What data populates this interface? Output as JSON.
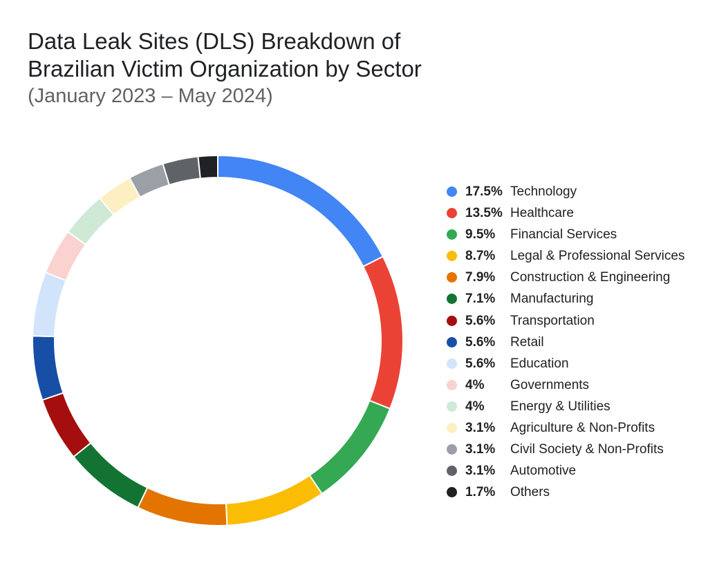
{
  "title": {
    "line1": "Data Leak Sites (DLS) Breakdown of",
    "line2": "Brazilian Victim Organization by Sector",
    "subtitle": "(January 2023 – May 2024)"
  },
  "chart_data": {
    "type": "pie",
    "variant": "donut",
    "legend_position": "right",
    "slices": [
      {
        "label": "Technology",
        "value": 17.5,
        "display": "17.5%",
        "color": "#4285F4"
      },
      {
        "label": "Healthcare",
        "value": 13.5,
        "display": "13.5%",
        "color": "#EA4335"
      },
      {
        "label": "Financial Services",
        "value": 9.5,
        "display": "9.5%",
        "color": "#34A853"
      },
      {
        "label": "Legal & Professional Services",
        "value": 8.7,
        "display": "8.7%",
        "color": "#FBBC04"
      },
      {
        "label": "Construction & Engineering",
        "value": 7.9,
        "display": "7.9%",
        "color": "#E37400"
      },
      {
        "label": "Manufacturing",
        "value": 7.1,
        "display": "7.1%",
        "color": "#137333"
      },
      {
        "label": "Transportation",
        "value": 5.6,
        "display": "5.6%",
        "color": "#A50E0E"
      },
      {
        "label": "Retail",
        "value": 5.6,
        "display": "5.6%",
        "color": "#174EA6"
      },
      {
        "label": "Education",
        "value": 5.6,
        "display": "5.6%",
        "color": "#D2E3FC"
      },
      {
        "label": "Governments",
        "value": 4,
        "display": "4%",
        "color": "#FAD2CF"
      },
      {
        "label": "Energy & Utilities",
        "value": 4,
        "display": "4%",
        "color": "#CEEAD6"
      },
      {
        "label": "Agriculture & Non-Profits",
        "value": 3.1,
        "display": "3.1%",
        "color": "#FEEFC3"
      },
      {
        "label": "Civil Society & Non-Profits",
        "value": 3.1,
        "display": "3.1%",
        "color": "#9AA0A6"
      },
      {
        "label": "Automotive",
        "value": 3.1,
        "display": "3.1%",
        "color": "#5F6368"
      },
      {
        "label": "Others",
        "value": 1.7,
        "display": "1.7%",
        "color": "#202124"
      }
    ]
  }
}
